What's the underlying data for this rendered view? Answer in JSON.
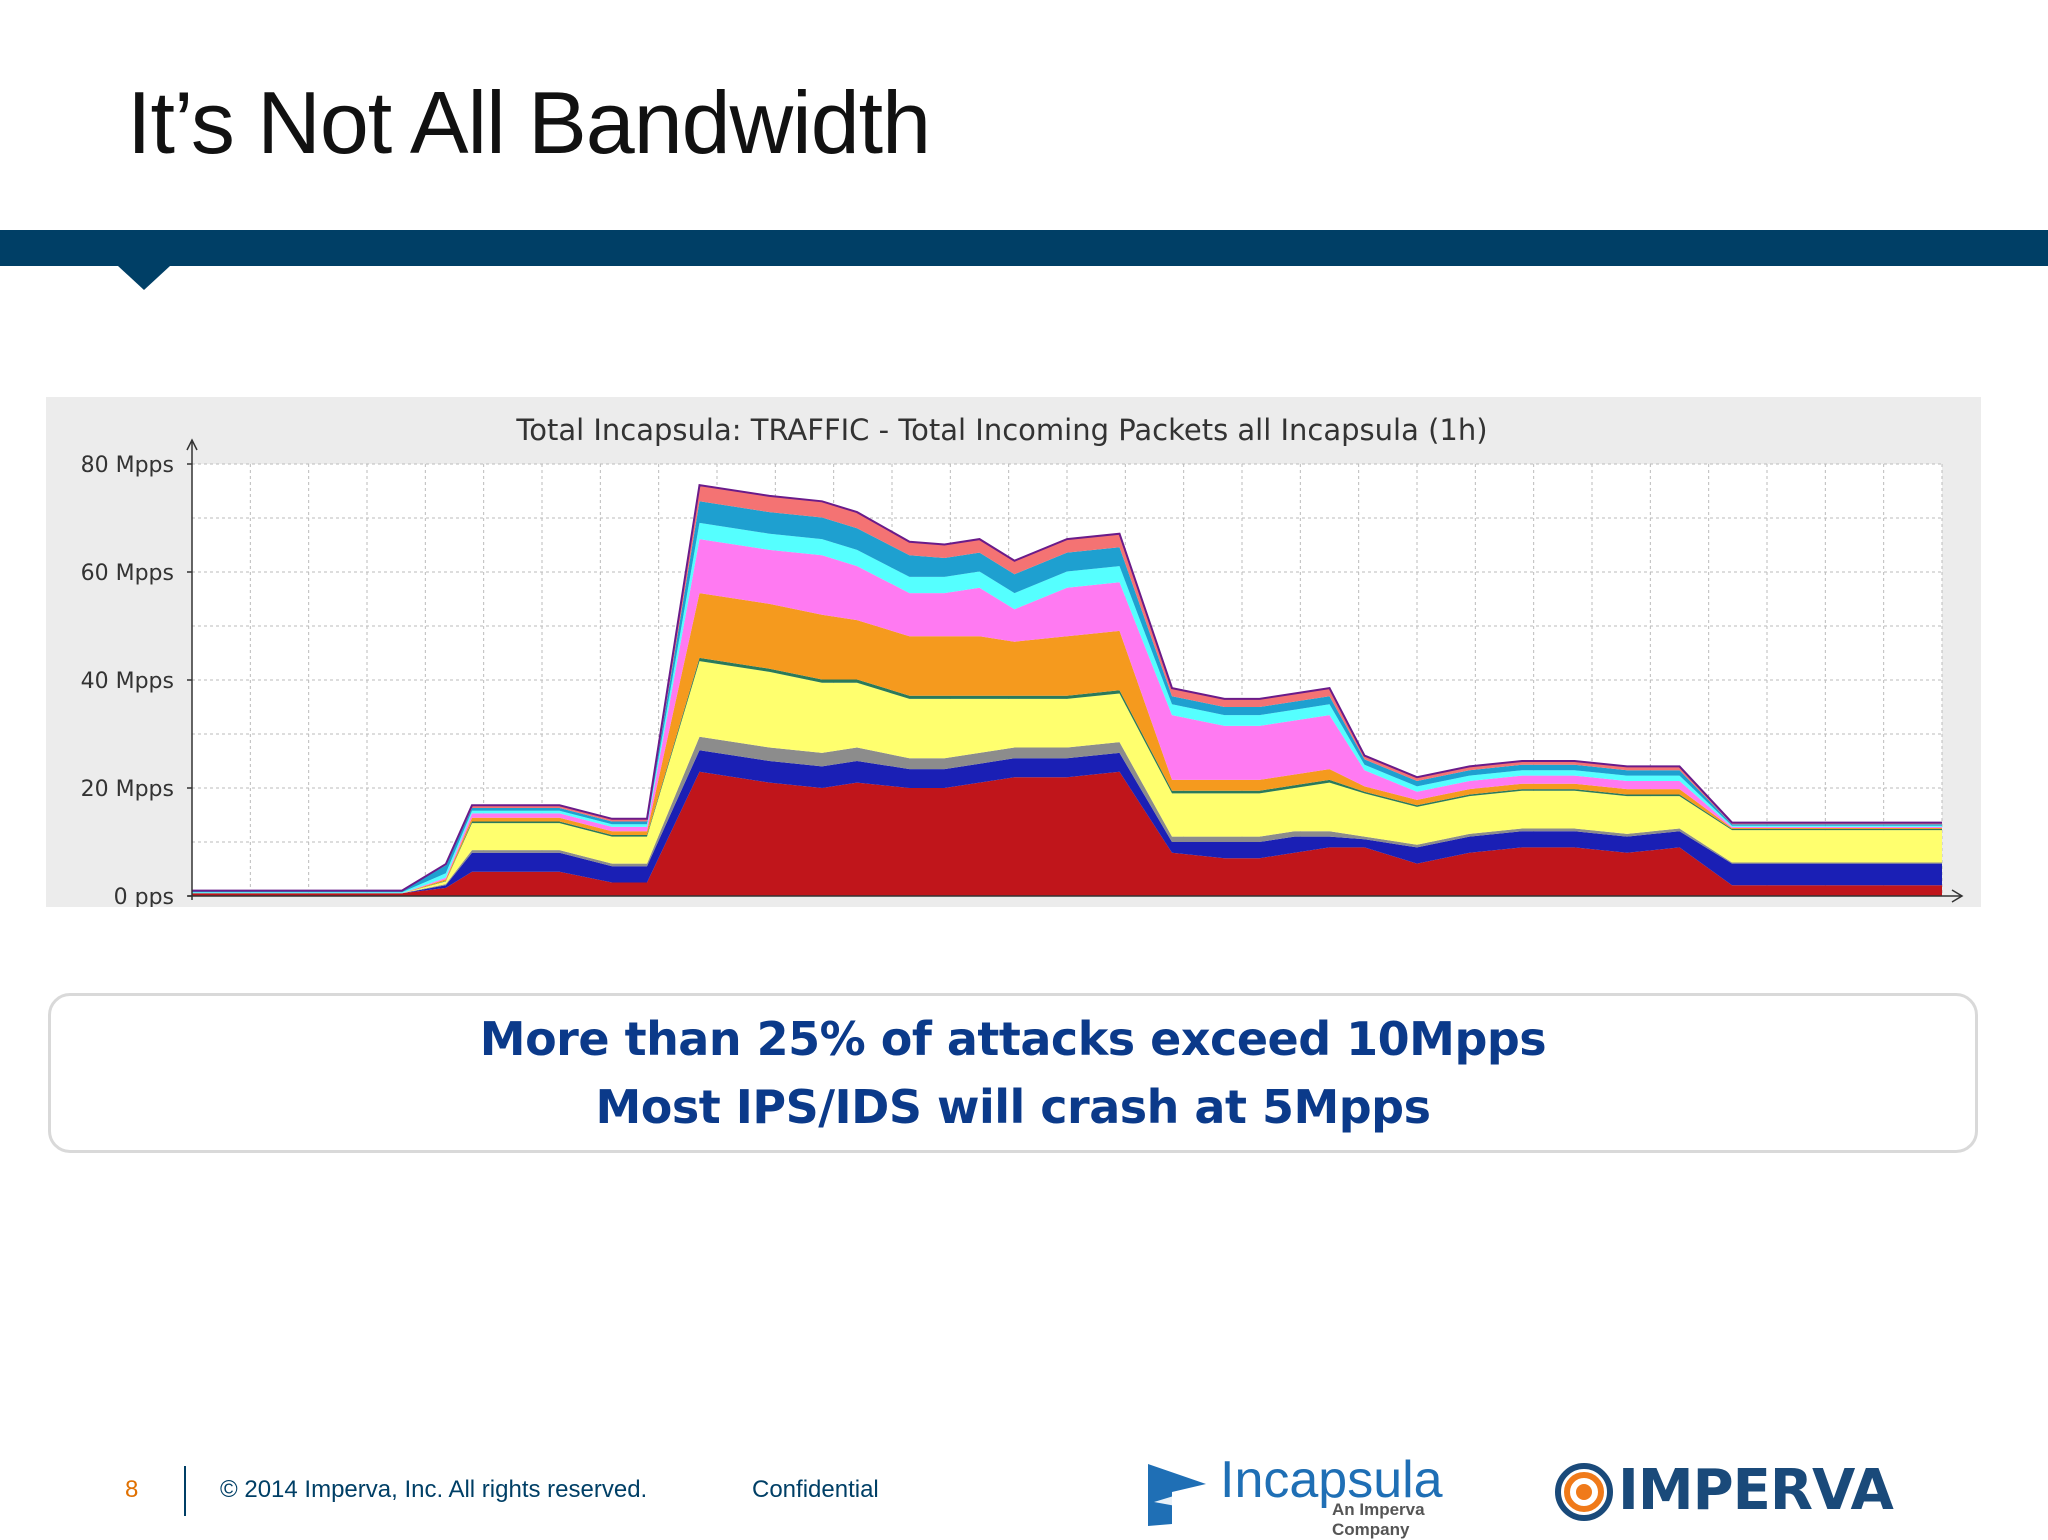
{
  "slide": {
    "title": "It’s Not All Bandwidth"
  },
  "chart_data": {
    "type": "area",
    "title": "Total Incapsula: TRAFFIC - Total Incoming Packets all Incapsula (1h)",
    "ylabel": "",
    "xlabel": "",
    "ylim": [
      0,
      80
    ],
    "y_unit": "Mpps",
    "y_ticks": [
      "0 pps",
      "20 Mpps",
      "40 Mpps",
      "60 Mpps",
      "80 Mpps"
    ],
    "grid": true,
    "stacked": true,
    "x": [
      0,
      5,
      9,
      12,
      14.5,
      16,
      18,
      21,
      24,
      26,
      29,
      33,
      36,
      38,
      41,
      43,
      45,
      47,
      50,
      53,
      56,
      59,
      61,
      63,
      65,
      67,
      70,
      73,
      76,
      79,
      82,
      85,
      88,
      91,
      94,
      97,
      100
    ],
    "series": [
      {
        "color": "#c0151b",
        "values": [
          0.5,
          0.5,
          0.5,
          0.5,
          1.5,
          4.5,
          4.5,
          4.5,
          2.5,
          2.5,
          23,
          21,
          20,
          21,
          20,
          20,
          21,
          22,
          22,
          23,
          8,
          7,
          7,
          8,
          9,
          9,
          6,
          8,
          9,
          9,
          8,
          9,
          2,
          2,
          2,
          2,
          2
        ]
      },
      {
        "color": "#1a1fb5",
        "values": [
          0,
          0,
          0,
          0,
          0.5,
          3.5,
          3.5,
          3.5,
          3,
          3,
          4,
          4,
          4,
          4,
          3.5,
          3.5,
          3.5,
          3.5,
          3.5,
          3.5,
          2,
          3,
          3,
          3,
          2,
          1.5,
          3,
          3,
          3,
          3,
          3,
          3,
          4,
          4,
          4,
          4,
          4
        ]
      },
      {
        "color": "#8c8c8c",
        "values": [
          0,
          0,
          0,
          0,
          0.2,
          0.5,
          0.5,
          0.5,
          0.5,
          0.5,
          2.5,
          2.5,
          2.5,
          2.5,
          2,
          2,
          2,
          2,
          2,
          2,
          1,
          1,
          1,
          1,
          1,
          0.5,
          0.5,
          0.5,
          0.5,
          0.5,
          0.5,
          0.5,
          0.2,
          0.2,
          0.2,
          0.2,
          0.2
        ]
      },
      {
        "color": "#ffff6e",
        "values": [
          0,
          0,
          0,
          0,
          0.5,
          5,
          5,
          5,
          5,
          5,
          14,
          14,
          13,
          12,
          11,
          11,
          10,
          9,
          9,
          9,
          8,
          8,
          8,
          8,
          9,
          8,
          7,
          7,
          7,
          7,
          7,
          6,
          6,
          6,
          6,
          6,
          6
        ]
      },
      {
        "color": "#2a7a5a",
        "values": [
          0,
          0,
          0,
          0,
          0.1,
          0.3,
          0.3,
          0.3,
          0.3,
          0.3,
          0.6,
          0.6,
          0.6,
          0.6,
          0.6,
          0.6,
          0.6,
          0.6,
          0.6,
          0.6,
          0.5,
          0.5,
          0.5,
          0.5,
          0.5,
          0.3,
          0.3,
          0.3,
          0.3,
          0.3,
          0.3,
          0.3,
          0.2,
          0.2,
          0.2,
          0.2,
          0.2
        ]
      },
      {
        "color": "#f59a1e",
        "values": [
          0,
          0,
          0,
          0,
          0.3,
          0.7,
          0.7,
          0.7,
          0.7,
          0.7,
          12,
          12,
          12,
          11,
          11,
          11,
          11,
          10,
          11,
          11,
          2,
          2,
          2,
          2,
          2,
          1,
          1,
          1,
          1,
          1,
          1,
          1,
          0.2,
          0.2,
          0.2,
          0.2,
          0.2
        ]
      },
      {
        "color": "#ff7af2",
        "values": [
          0,
          0,
          0,
          0,
          0.3,
          0.8,
          0.8,
          0.8,
          0.8,
          0.8,
          10,
          10,
          11,
          10,
          8,
          8,
          9,
          6,
          9,
          9,
          12,
          10,
          10,
          10,
          10,
          3,
          1.5,
          1.5,
          1.5,
          1.5,
          1.5,
          1.5,
          0.2,
          0.2,
          0.2,
          0.2,
          0.2
        ]
      },
      {
        "color": "#55ffff",
        "values": [
          0.2,
          0.2,
          0.2,
          0.2,
          0.8,
          0.5,
          0.5,
          0.5,
          0.5,
          0.5,
          3,
          3,
          3,
          3,
          3,
          3,
          3,
          3,
          3,
          3,
          2,
          2,
          2,
          2,
          2,
          1,
          1,
          1,
          1,
          1,
          1,
          1,
          0.2,
          0.2,
          0.2,
          0.2,
          0.2
        ]
      },
      {
        "color": "#1ea0d0",
        "values": [
          0.3,
          0.3,
          0.3,
          0.3,
          1.5,
          0.5,
          0.5,
          0.5,
          0.5,
          0.5,
          4,
          4,
          4,
          4,
          4,
          3.5,
          3.5,
          3.5,
          3.5,
          3.5,
          1.5,
          1.5,
          1.5,
          1.5,
          1.5,
          1,
          1,
          1,
          1,
          1,
          1,
          1,
          0.3,
          0.3,
          0.3,
          0.3,
          0.3
        ]
      },
      {
        "color": "#f47373",
        "values": [
          0,
          0,
          0,
          0,
          0.2,
          0.5,
          0.5,
          0.5,
          0.5,
          0.5,
          3,
          3,
          3,
          3,
          2.5,
          2.5,
          2.5,
          2.5,
          2.5,
          2.5,
          1.5,
          1.5,
          1.5,
          1.5,
          1.5,
          0.7,
          0.7,
          0.7,
          0.7,
          0.7,
          0.7,
          0.7,
          0.3,
          0.3,
          0.3,
          0.3,
          0.3
        ]
      }
    ]
  },
  "callout": {
    "line1": "More than 25% of attacks exceed 10Mpps",
    "line2": "Most IPS/IDS will crash at 5Mpps"
  },
  "footer": {
    "page_number": "8",
    "copyright": "© 2014 Imperva, Inc. All rights reserved.",
    "confidential": "Confidential"
  },
  "logos": {
    "incapsula_name": "Incapsula",
    "incapsula_tagline": "An Imperva Company",
    "imperva_name": "IMPERVA"
  },
  "colors": {
    "header_bar": "#003f66",
    "callout_text": "#0b3a8a",
    "page_number": "#e07000"
  }
}
